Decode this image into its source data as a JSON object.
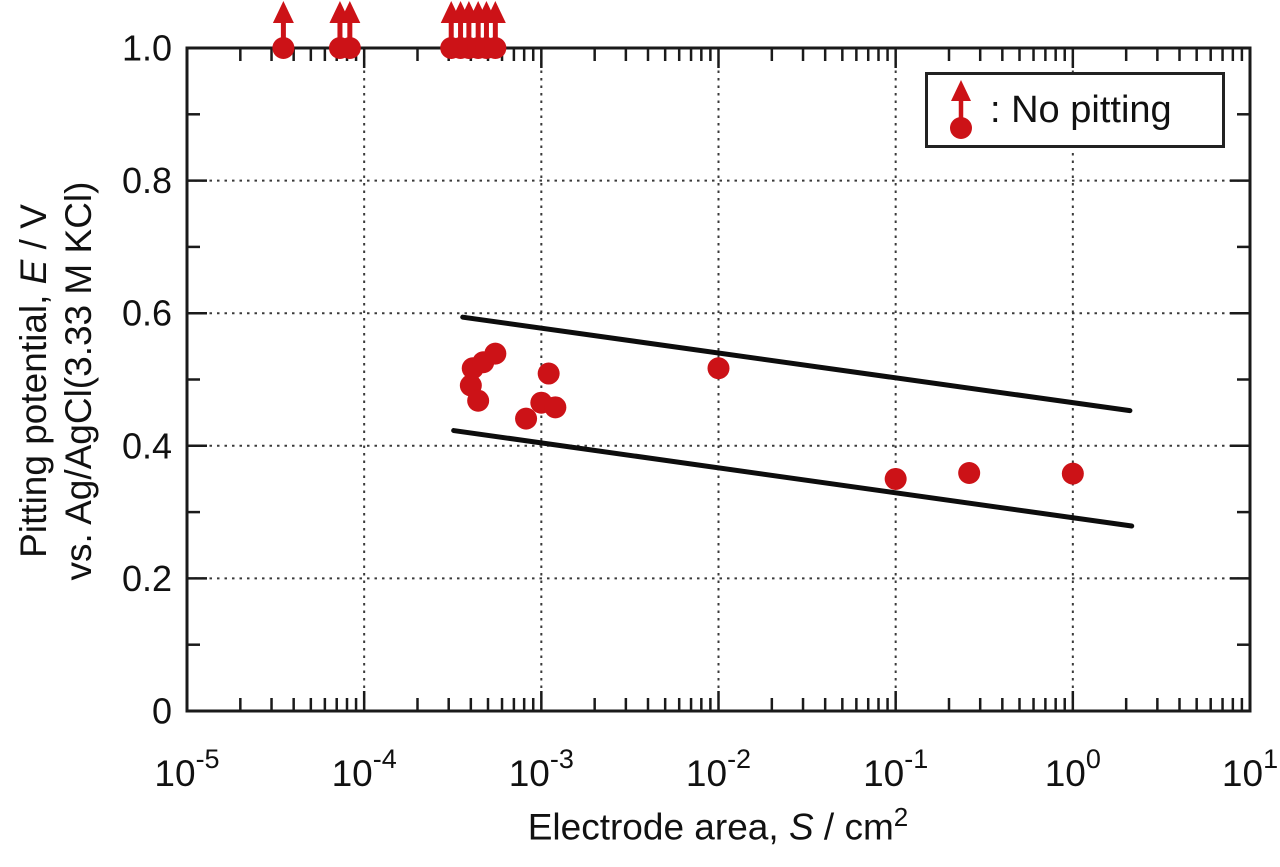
{
  "figure": {
    "background": "#ffffff",
    "axis_color": "#1a1a1a",
    "grid_color": "#3a3a3a",
    "trend_line_color": "#0d0d0d",
    "ylabel": {
      "line1_pre": "Pitting potential, ",
      "line1_italic": "E",
      "line1_post": " / V",
      "line2": "vs. Ag/AgCl(3.33 M KCl)"
    },
    "xlabel": {
      "pre": "Electrode area, ",
      "italic": "S",
      "mid": " / cm",
      "sup": "2"
    }
  },
  "chart_data": {
    "type": "scatter",
    "title": "",
    "xlabel": "Electrode area, S / cm^2",
    "ylabel": "Pitting potential, E / V vs. Ag/AgCl(3.33 M KCl)",
    "x_axis": {
      "scale": "log",
      "min_exponent": -5,
      "max_exponent": 1,
      "tick_base": "10",
      "tick_exponents": [
        -5,
        -4,
        -3,
        -2,
        -1,
        0,
        1
      ],
      "minor_ticks": "log decades 2-9"
    },
    "y_axis": {
      "min": 0,
      "max": 1.0,
      "major_ticks": [
        0,
        0.2,
        0.4,
        0.6,
        0.8,
        1.0
      ],
      "tick_labels": [
        "0",
        "0.2",
        "0.4",
        "0.6",
        "0.8",
        "1.0"
      ],
      "minor_step": 0.1
    },
    "grid": "dotted lines at each x decade and every 0.2 in y",
    "marker_color": "#cc1217",
    "legend": {
      "text": ": No pitting",
      "position": "top-right"
    },
    "series": [
      {
        "name": "No pitting (potential exceeds 1.0 V, shown as up-arrow markers)",
        "marker": "circle-up-arrow",
        "points": [
          [
            3.5e-05,
            1.0
          ],
          [
            7.3e-05,
            1.0
          ],
          [
            8.3e-05,
            1.0
          ],
          [
            0.00031,
            1.0
          ],
          [
            0.00035,
            1.0
          ],
          [
            0.00039,
            1.0
          ],
          [
            0.00044,
            1.0
          ],
          [
            0.00049,
            1.0
          ],
          [
            0.00055,
            1.0
          ]
        ]
      },
      {
        "name": "Pitting potential",
        "marker": "circle",
        "points": [
          [
            0.0004,
            0.491
          ],
          [
            0.00041,
            0.517
          ],
          [
            0.00044,
            0.468
          ],
          [
            0.00047,
            0.526
          ],
          [
            0.00055,
            0.539
          ],
          [
            0.00082,
            0.441
          ],
          [
            0.001,
            0.465
          ],
          [
            0.0011,
            0.509
          ],
          [
            0.0012,
            0.458
          ],
          [
            0.01,
            0.517
          ],
          [
            0.1,
            0.35
          ],
          [
            0.26,
            0.359
          ],
          [
            1.0,
            0.358
          ]
        ]
      }
    ],
    "trend_lines": [
      {
        "name": "upper-bound",
        "from": [
          0.00036,
          0.594
        ],
        "to": [
          2.1,
          0.453
        ]
      },
      {
        "name": "lower-bound",
        "from": [
          0.00032,
          0.423
        ],
        "to": [
          2.15,
          0.279
        ]
      }
    ]
  }
}
